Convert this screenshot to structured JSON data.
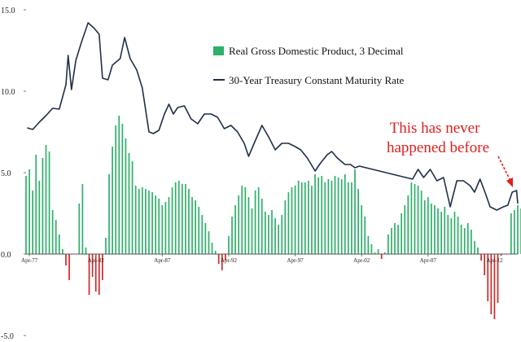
{
  "chart_data": {
    "type": "bar",
    "title": "",
    "xlabel": "",
    "ylabel": "",
    "ylim": [
      -5,
      15
    ],
    "yticks": [
      "15.0",
      "10.0",
      "5.0",
      "0.0",
      "-5.0"
    ],
    "xtick_labels": [
      "Apr-77",
      "Apr-82",
      "Apr-87",
      "Apr-92",
      "Apr-97",
      "Apr-02",
      "Apr-07",
      "Apr-12"
    ],
    "x_range": [
      "1977-01",
      "2014-01"
    ],
    "grid": false,
    "legend_position": "top-right",
    "bar_series": {
      "name": "Real Gross Domestic Product, 3 Decimal",
      "color_positive": "#2eb06a",
      "color_negative": "#cc2a2a",
      "values": [
        4.8,
        5.2,
        3.9,
        6.1,
        4.5,
        5.9,
        6.7,
        6.3,
        2.7,
        2.1,
        1.2,
        0.3,
        -0.7,
        -1.6,
        0.0,
        0.0,
        3.1,
        4.3,
        0.4,
        -2.5,
        -1.4,
        -2.3,
        -2.5,
        -1.6,
        1.0,
        4.9,
        6.6,
        7.9,
        8.5,
        8.0,
        7.1,
        6.2,
        5.7,
        4.2,
        4.0,
        4.1,
        4.0,
        3.9,
        3.8,
        3.6,
        3.4,
        3.0,
        3.2,
        3.5,
        4.1,
        4.4,
        4.5,
        4.3,
        4.3,
        4.0,
        3.5,
        3.3,
        2.9,
        2.4,
        1.9,
        1.4,
        0.7,
        0.2,
        -0.6,
        -1.0,
        -0.4,
        1.1,
        2.3,
        3.0,
        3.6,
        4.2,
        4.1,
        3.5,
        2.8,
        3.9,
        4.1,
        3.4,
        2.6,
        2.4,
        2.7,
        2.2,
        1.8,
        2.4,
        3.3,
        3.8,
        4.1,
        4.2,
        4.5,
        4.4,
        4.4,
        4.5,
        4.2,
        4.9,
        4.7,
        4.8,
        4.4,
        4.6,
        4.5,
        4.8,
        4.7,
        4.6,
        4.9,
        4.4,
        4.4,
        5.2,
        4.0,
        3.0,
        2.3,
        1.1,
        0.6,
        0.1,
        0.3,
        -0.3,
        0.1,
        1.2,
        1.6,
        1.9,
        1.8,
        2.5,
        3.0,
        3.6,
        4.4,
        4.3,
        4.2,
        3.9,
        3.3,
        3.5,
        3.1,
        3.0,
        2.8,
        2.6,
        2.9,
        2.4,
        2.2,
        2.6,
        2.3,
        1.8,
        1.6,
        1.9,
        1.5,
        0.8,
        0.4,
        -0.4,
        -1.3,
        -2.9,
        -3.7,
        -4.0,
        -3.0,
        -0.1,
        0.0,
        0.0,
        2.5,
        2.7,
        3.0,
        2.8,
        2.5,
        1.6,
        1.5,
        1.8,
        2.1,
        1.9,
        2.3,
        2.8,
        3.2,
        2.0,
        1.8,
        2.9
      ]
    },
    "line_series": {
      "name": "30-Year Treasury Constant Maturity Rate",
      "color": "#1f2f4a",
      "points": [
        [
          "1977-02",
          7.75
        ],
        [
          "1977-07",
          7.65
        ],
        [
          "1978-01",
          8.1
        ],
        [
          "1978-07",
          8.5
        ],
        [
          "1979-01",
          8.95
        ],
        [
          "1979-07",
          8.9
        ],
        [
          "1980-01",
          10.4
        ],
        [
          "1980-03",
          12.2
        ],
        [
          "1980-06",
          10.1
        ],
        [
          "1980-10",
          11.9
        ],
        [
          "1981-03",
          13.0
        ],
        [
          "1981-09",
          14.2
        ],
        [
          "1982-02",
          13.9
        ],
        [
          "1982-07",
          13.5
        ],
        [
          "1982-10",
          10.8
        ],
        [
          "1983-03",
          10.7
        ],
        [
          "1983-07",
          11.6
        ],
        [
          "1984-02",
          12.0
        ],
        [
          "1984-06",
          13.3
        ],
        [
          "1984-11",
          12.0
        ],
        [
          "1985-05",
          11.3
        ],
        [
          "1985-10",
          10.2
        ],
        [
          "1986-04",
          7.5
        ],
        [
          "1986-08",
          7.4
        ],
        [
          "1987-01",
          7.6
        ],
        [
          "1987-06",
          8.6
        ],
        [
          "1987-10",
          9.2
        ],
        [
          "1988-02",
          8.6
        ],
        [
          "1988-06",
          9.0
        ],
        [
          "1988-12",
          9.1
        ],
        [
          "1989-06",
          8.3
        ],
        [
          "1989-12",
          8.0
        ],
        [
          "1990-06",
          8.6
        ],
        [
          "1990-12",
          8.6
        ],
        [
          "1991-06",
          8.4
        ],
        [
          "1991-12",
          7.7
        ],
        [
          "1992-06",
          7.9
        ],
        [
          "1992-12",
          7.5
        ],
        [
          "1993-06",
          6.8
        ],
        [
          "1993-10",
          6.0
        ],
        [
          "1994-03",
          6.8
        ],
        [
          "1994-10",
          7.9
        ],
        [
          "1995-04",
          7.2
        ],
        [
          "1995-10",
          6.4
        ],
        [
          "1996-04",
          6.8
        ],
        [
          "1996-10",
          6.8
        ],
        [
          "1997-04",
          6.6
        ],
        [
          "1997-09",
          6.4
        ],
        [
          "1998-03",
          5.9
        ],
        [
          "1998-10",
          5.1
        ],
        [
          "1999-03",
          5.6
        ],
        [
          "1999-09",
          6.1
        ],
        [
          "2000-01",
          6.3
        ],
        [
          "2000-06",
          5.9
        ],
        [
          "2001-01",
          5.5
        ],
        [
          "2001-06",
          5.5
        ],
        [
          "2001-10",
          5.3
        ],
        [
          "2002-02",
          5.4
        ],
        [
          "2006-02",
          4.6
        ],
        [
          "2006-07",
          5.2
        ],
        [
          "2006-12",
          4.7
        ],
        [
          "2007-06",
          5.2
        ],
        [
          "2007-12",
          4.5
        ],
        [
          "2008-06",
          4.7
        ],
        [
          "2008-12",
          2.9
        ],
        [
          "2009-06",
          4.5
        ],
        [
          "2009-12",
          4.5
        ],
        [
          "2010-06",
          4.2
        ],
        [
          "2010-10",
          3.8
        ],
        [
          "2011-03",
          4.6
        ],
        [
          "2011-08",
          3.7
        ],
        [
          "2011-12",
          2.9
        ],
        [
          "2012-06",
          2.7
        ],
        [
          "2012-12",
          2.9
        ],
        [
          "2013-04",
          3.0
        ],
        [
          "2013-08",
          3.8
        ],
        [
          "2013-12",
          3.9
        ],
        [
          "2014-01",
          3.1
        ]
      ]
    },
    "annotation": {
      "lines": [
        "This has never",
        "happened before"
      ],
      "color": "#e02020"
    }
  }
}
